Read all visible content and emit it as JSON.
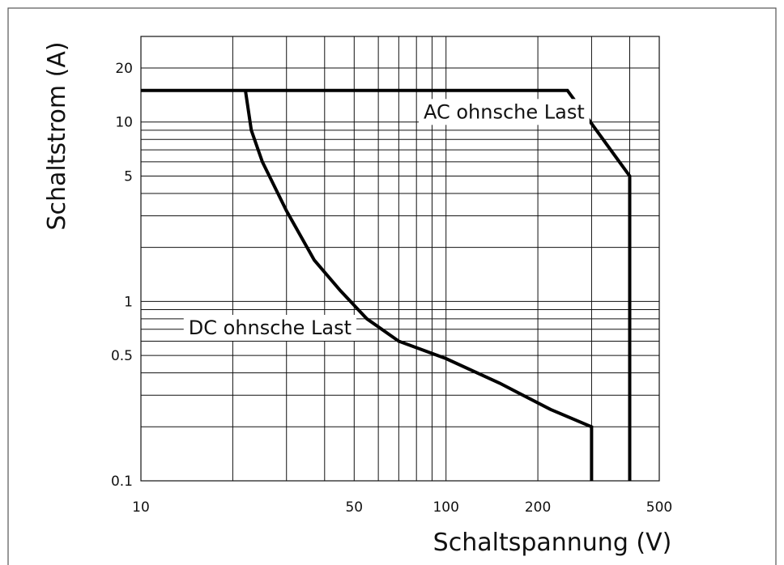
{
  "chart_data": {
    "type": "line",
    "xlabel": "Schaltspannung (V)",
    "ylabel": "Schaltstrom (A)",
    "x_scale": "log",
    "y_scale": "log",
    "xlim": [
      10,
      500
    ],
    "ylim": [
      0.1,
      30
    ],
    "grid": true,
    "x_ticks": [
      10,
      50,
      100,
      200,
      500
    ],
    "y_ticks": [
      0.1,
      0.5,
      1,
      5,
      10,
      20
    ],
    "x_tick_labels": [
      "10",
      "50",
      "100",
      "200",
      "500"
    ],
    "y_tick_labels": [
      "0.1",
      "0.5",
      "1",
      "5",
      "10",
      "20"
    ],
    "series": [
      {
        "points": [
          [
            10,
            15
          ],
          [
            250,
            15
          ],
          [
            400,
            5
          ],
          [
            400,
            0.1
          ]
        ]
      },
      {
        "points": [
          [
            22,
            15
          ],
          [
            23,
            9
          ],
          [
            25,
            6
          ],
          [
            30,
            3.2
          ],
          [
            37,
            1.7
          ],
          [
            45,
            1.15
          ],
          [
            55,
            0.8
          ],
          [
            70,
            0.6
          ],
          [
            100,
            0.48
          ],
          [
            150,
            0.35
          ],
          [
            220,
            0.25
          ],
          [
            300,
            0.2
          ],
          [
            300,
            0.1
          ]
        ]
      }
    ],
    "annotations": [
      {
        "text": "AC ohnsche Last",
        "x": 155,
        "y": 11.5
      },
      {
        "text": "DC ohnsche Last",
        "x": 26.5,
        "y": 0.72
      }
    ]
  }
}
